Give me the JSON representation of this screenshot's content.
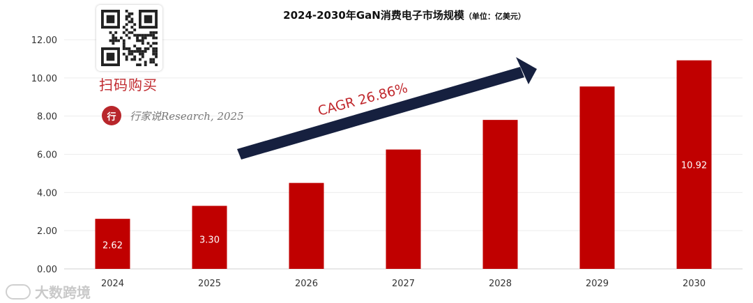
{
  "chart_data": {
    "type": "bar",
    "title": "2024-2030年GaN消费电子市场规模",
    "unit_note": "（单位：亿美元）",
    "xlabel": "",
    "ylabel": "",
    "categories": [
      "2024",
      "2025",
      "2026",
      "2027",
      "2028",
      "2029",
      "2030"
    ],
    "series": [
      {
        "values": [
          2.62,
          3.3,
          4.5,
          6.25,
          7.8,
          9.55,
          10.92
        ]
      }
    ],
    "data_labels": [
      "2.62",
      "3.30",
      "",
      "",
      "",
      "",
      "10.92"
    ],
    "ylim": [
      0,
      12
    ],
    "yticks": [
      "0.00",
      "2.00",
      "4.00",
      "6.00",
      "8.00",
      "10.00",
      "12.00"
    ],
    "grid": true,
    "bar_color": "#c00000",
    "annotation": {
      "text": "CAGR 26.86%",
      "color": "#c0282d",
      "arrow_color": "#16203f"
    }
  },
  "overlay": {
    "buy_label": "扫码购买",
    "brand_logo_text": "行",
    "source_text": "行家说Research, 2025",
    "watermark_text": "大数跨境"
  }
}
